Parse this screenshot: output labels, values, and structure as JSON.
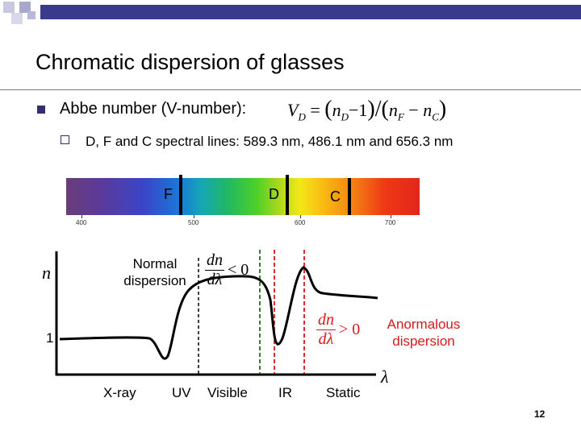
{
  "slide": {
    "title": "Chromatic dispersion of glasses",
    "bullet_text": "Abbe number (V-number):",
    "formula": {
      "lhs": "V",
      "lhs_sub": "D",
      "equals": "=",
      "nD": "n",
      "nD_sub": "D",
      "minus_one": "−1",
      "slash": "/",
      "nF": "n",
      "nF_sub": "F",
      "minus": "−",
      "nC": "n",
      "nC_sub": "C"
    },
    "sub_bullet_text": "D, F and C spectral lines: 589.3 nm, 486.1 nm and 656.3 nm",
    "page_number": "12"
  },
  "spectrum": {
    "lines": [
      {
        "letter": "F"
      },
      {
        "letter": "D"
      },
      {
        "letter": "C"
      }
    ],
    "ticks": [
      "400",
      "500",
      "600",
      "700"
    ]
  },
  "plot": {
    "y_axis_label": "n",
    "x_axis_label": "λ",
    "one_label": "1",
    "normal_label_line1": "Normal",
    "normal_label_line2": "dispersion",
    "normal_deriv_num": "dn",
    "normal_deriv_den": "dλ",
    "normal_deriv_rel": "< 0",
    "anormal_label_line1": "Anormalous",
    "anormal_label_line2": "dispersion",
    "anormal_deriv_num": "dn",
    "anormal_deriv_den": "dλ",
    "anormal_deriv_rel": "> 0",
    "regions": [
      "X-ray",
      "UV",
      "Visible",
      "IR",
      "Static"
    ],
    "colors": {
      "normal_lines": "#1a7a1a",
      "anormal_lines": "#d61a1a",
      "anormal_text": "#d61a1a",
      "top_bar": "#3a3a8c"
    }
  }
}
